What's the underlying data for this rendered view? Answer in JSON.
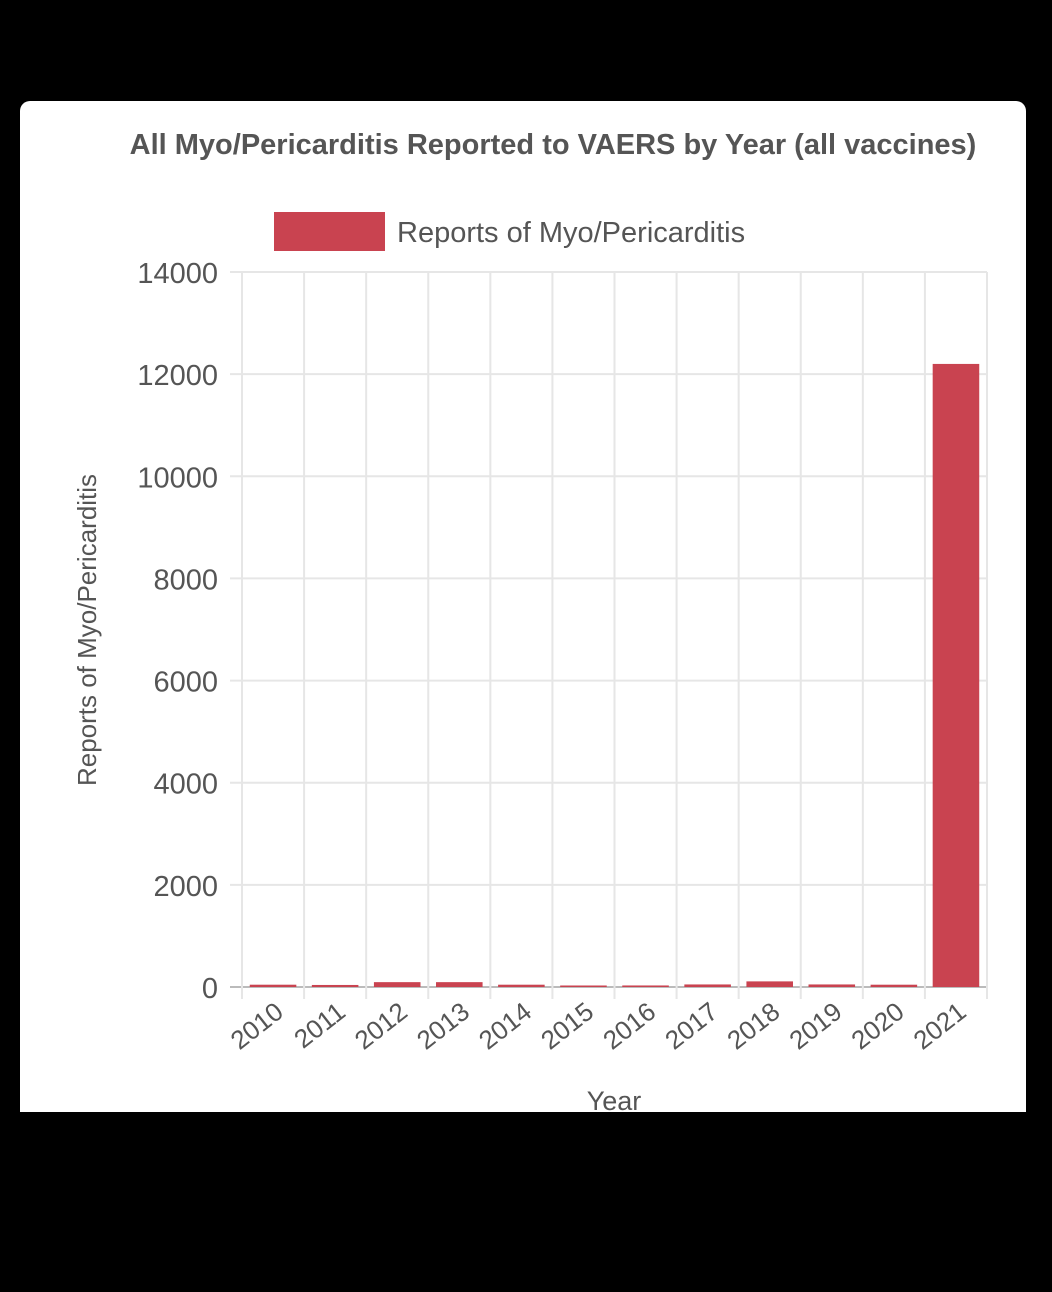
{
  "chart_data": {
    "type": "bar",
    "title": "All Myo/Pericarditis Reported to VAERS by Year (all vaccines)",
    "xlabel": "Year",
    "ylabel": "Reports of Myo/Pericarditis",
    "legend": {
      "label": "Reports of Myo/Pericarditis",
      "placement": "top-center"
    },
    "categories": [
      "2010",
      "2011",
      "2012",
      "2013",
      "2014",
      "2015",
      "2016",
      "2017",
      "2018",
      "2019",
      "2020",
      "2021"
    ],
    "values": [
      45,
      40,
      95,
      95,
      45,
      10,
      30,
      50,
      110,
      50,
      45,
      12200
    ],
    "ylim": [
      0,
      14000
    ],
    "yticks": [
      "0",
      "2000",
      "4000",
      "6000",
      "8000",
      "10000",
      "12000",
      "14000"
    ],
    "grid": true,
    "colors": {
      "bar": "#c94350",
      "grid": "#e6e6e6",
      "text": "#555555"
    }
  }
}
